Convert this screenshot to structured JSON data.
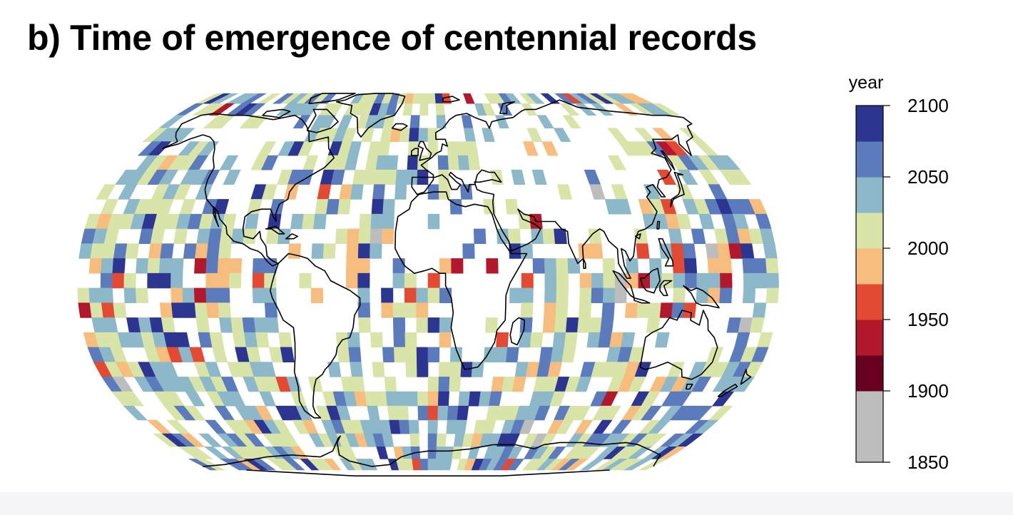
{
  "title": "b) Time of emergence of centennial records",
  "legend": {
    "title": "year",
    "tick_labels": [
      "2100",
      "2050",
      "2000",
      "1950",
      "1900",
      "1850"
    ],
    "ticks": [
      2100,
      2050,
      2000,
      1950,
      1900,
      1850
    ],
    "range": [
      1850,
      2100
    ],
    "bins": [
      {
        "from": 1850,
        "to": 1900,
        "color": "#bdbdbd"
      },
      {
        "from": 1900,
        "to": 1925,
        "color": "#67001f"
      },
      {
        "from": 1925,
        "to": 1950,
        "color": "#b2182b"
      },
      {
        "from": 1950,
        "to": 1975,
        "color": "#e34a33"
      },
      {
        "from": 1975,
        "to": 2000,
        "color": "#f6bd7e"
      },
      {
        "from": 2000,
        "to": 2025,
        "color": "#d9e4a8"
      },
      {
        "from": 2025,
        "to": 2050,
        "color": "#8cb8c9"
      },
      {
        "from": 2050,
        "to": 2075,
        "color": "#5b7bbd"
      },
      {
        "from": 2075,
        "to": 2100,
        "color": "#2c3590"
      }
    ]
  },
  "map": {
    "projection": "robinson",
    "grid_spacing_deg": 6,
    "coastline_color": "#000000",
    "missing_color": "#ffffff"
  }
}
